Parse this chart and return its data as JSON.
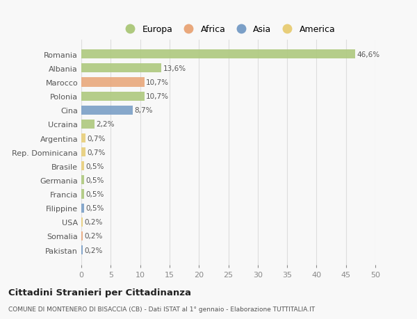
{
  "categories": [
    "Romania",
    "Albania",
    "Marocco",
    "Polonia",
    "Cina",
    "Ucraina",
    "Argentina",
    "Rep. Dominicana",
    "Brasile",
    "Germania",
    "Francia",
    "Filippine",
    "USA",
    "Somalia",
    "Pakistan"
  ],
  "values": [
    46.6,
    13.6,
    10.7,
    10.7,
    8.7,
    2.2,
    0.7,
    0.7,
    0.5,
    0.5,
    0.5,
    0.5,
    0.2,
    0.2,
    0.2
  ],
  "labels": [
    "46,6%",
    "13,6%",
    "10,7%",
    "10,7%",
    "8,7%",
    "2,2%",
    "0,7%",
    "0,7%",
    "0,5%",
    "0,5%",
    "0,5%",
    "0,5%",
    "0,2%",
    "0,2%",
    "0,2%"
  ],
  "colors": [
    "#aec97e",
    "#aec97e",
    "#e9a87c",
    "#aec97e",
    "#7b9fc7",
    "#aec97e",
    "#e8ce7a",
    "#e8ce7a",
    "#e8ce7a",
    "#aec97e",
    "#aec97e",
    "#7b9fc7",
    "#e8ce7a",
    "#e9a87c",
    "#7b9fc7"
  ],
  "legend": [
    {
      "label": "Europa",
      "color": "#aec97e"
    },
    {
      "label": "Africa",
      "color": "#e9a87c"
    },
    {
      "label": "Asia",
      "color": "#7b9fc7"
    },
    {
      "label": "America",
      "color": "#e8ce7a"
    }
  ],
  "xlim": [
    0,
    50
  ],
  "xticks": [
    0,
    5,
    10,
    15,
    20,
    25,
    30,
    35,
    40,
    45,
    50
  ],
  "title": "Cittadini Stranieri per Cittadinanza",
  "subtitle": "COMUNE DI MONTENERO DI BISACCIA (CB) - Dati ISTAT al 1° gennaio - Elaborazione TUTTITALIA.IT",
  "background_color": "#f8f8f8",
  "grid_color": "#dddddd",
  "bar_height": 0.65
}
